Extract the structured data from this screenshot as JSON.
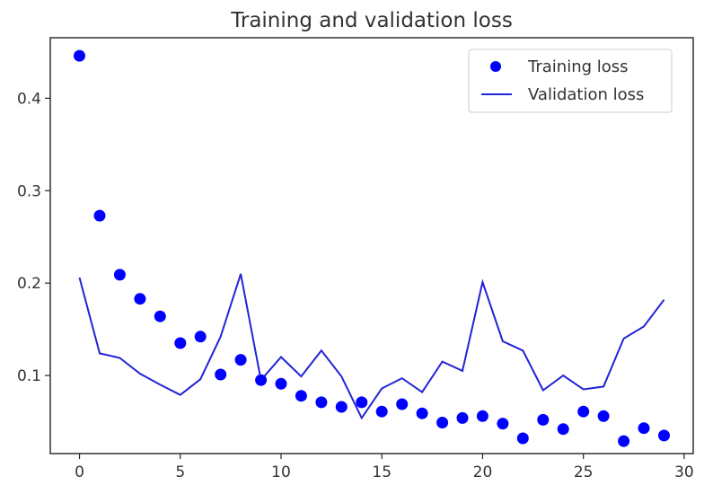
{
  "chart_data": {
    "type": "scatter",
    "title": "Training and validation loss",
    "xlabel": "",
    "ylabel": "",
    "xlim": [
      -1.45,
      30.45
    ],
    "ylim": [
      0.0155,
      0.4655
    ],
    "xticks": [
      0,
      5,
      10,
      15,
      20,
      25,
      30
    ],
    "yticks": [
      0.1,
      0.2,
      0.3,
      0.4
    ],
    "xtick_labels": [
      "0",
      "5",
      "10",
      "15",
      "20",
      "25",
      "30"
    ],
    "ytick_labels": [
      "0.1",
      "0.2",
      "0.3",
      "0.4"
    ],
    "grid": false,
    "legend_position": "top-right",
    "series": [
      {
        "name": "Training loss",
        "style": "points",
        "color": "#0000ff",
        "x": [
          0,
          1,
          2,
          3,
          4,
          5,
          6,
          7,
          8,
          9,
          10,
          11,
          12,
          13,
          14,
          15,
          16,
          17,
          18,
          19,
          20,
          21,
          22,
          23,
          24,
          25,
          26,
          27,
          28,
          29
        ],
        "values": [
          0.446,
          0.273,
          0.209,
          0.183,
          0.164,
          0.135,
          0.142,
          0.101,
          0.117,
          0.095,
          0.091,
          0.078,
          0.071,
          0.066,
          0.071,
          0.061,
          0.069,
          0.059,
          0.049,
          0.054,
          0.056,
          0.048,
          0.032,
          0.052,
          0.042,
          0.061,
          0.056,
          0.029,
          0.043,
          0.035
        ]
      },
      {
        "name": "Validation loss",
        "style": "line",
        "color": "#2323d9",
        "x": [
          0,
          1,
          2,
          3,
          4,
          5,
          6,
          7,
          8,
          9,
          10,
          11,
          12,
          13,
          14,
          15,
          16,
          17,
          18,
          19,
          20,
          21,
          22,
          23,
          24,
          25,
          26,
          27,
          28,
          29
        ],
        "values": [
          0.206,
          0.124,
          0.119,
          0.102,
          0.09,
          0.079,
          0.096,
          0.142,
          0.21,
          0.095,
          0.12,
          0.099,
          0.127,
          0.099,
          0.054,
          0.086,
          0.097,
          0.082,
          0.115,
          0.105,
          0.201,
          0.137,
          0.127,
          0.084,
          0.1,
          0.085,
          0.088,
          0.14,
          0.153,
          0.182
        ]
      }
    ]
  }
}
